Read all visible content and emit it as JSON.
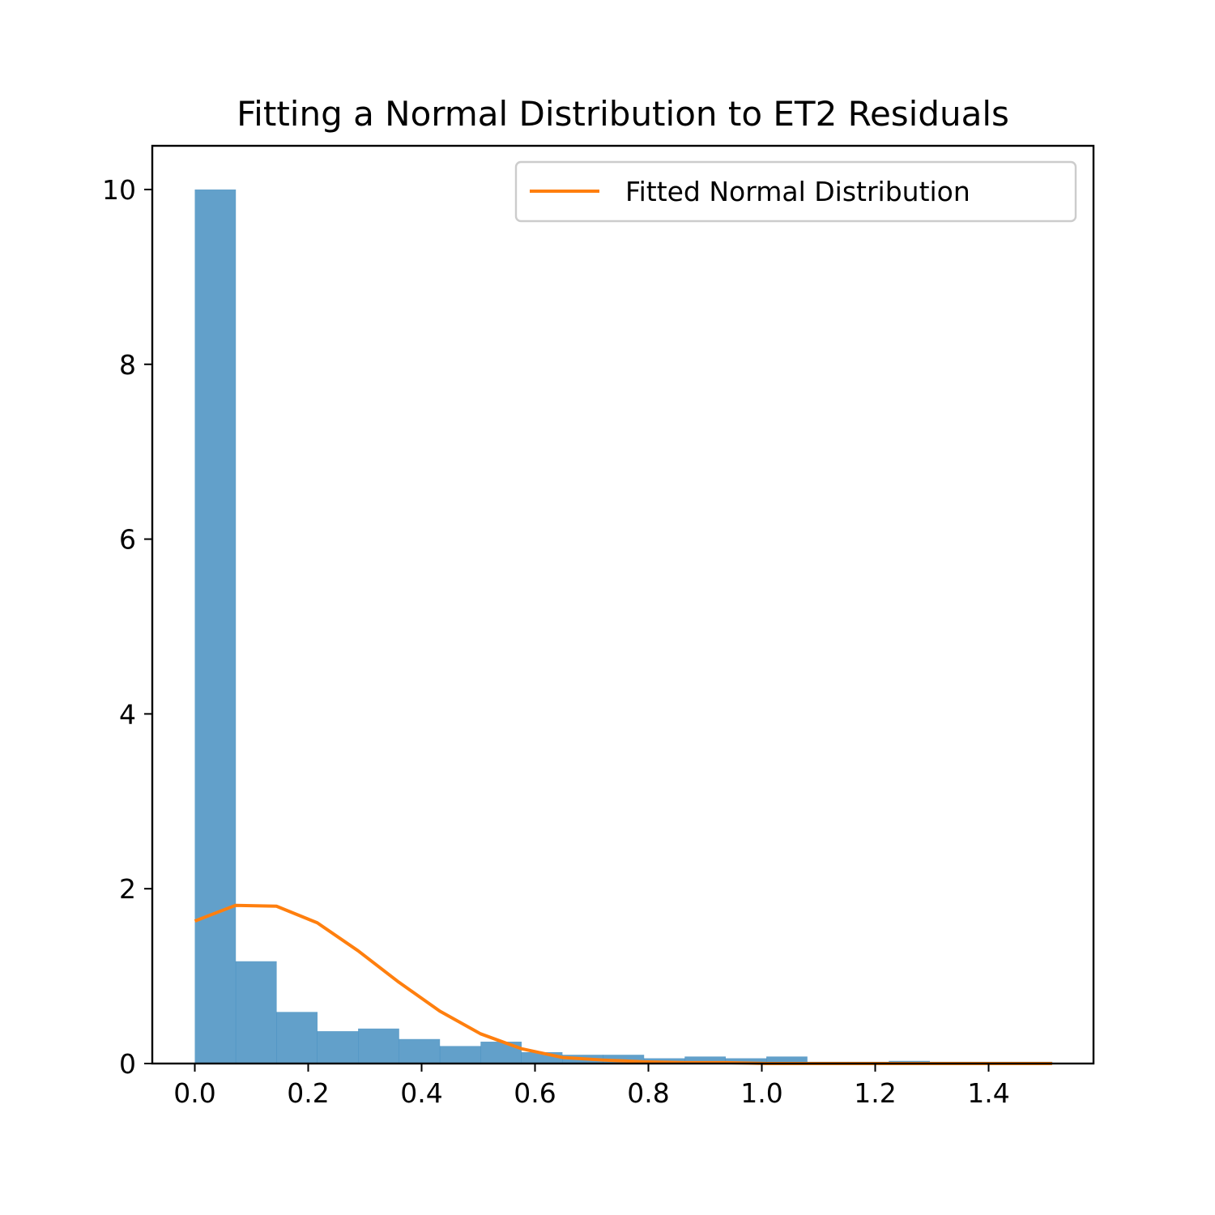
{
  "chart_data": {
    "type": "bar",
    "title": "Fitting a Normal Distribution to ET2 Residuals",
    "xlabel": "",
    "ylabel": "",
    "xlim": [
      -0.075,
      1.585
    ],
    "ylim": [
      0,
      10.5
    ],
    "x_ticks": [
      0.0,
      0.2,
      0.4,
      0.6,
      0.8,
      1.0,
      1.2,
      1.4
    ],
    "x_tick_labels": [
      "0.0",
      "0.2",
      "0.4",
      "0.6",
      "0.8",
      "1.0",
      "1.2",
      "1.4"
    ],
    "y_ticks": [
      0,
      2,
      4,
      6,
      8,
      10
    ],
    "y_tick_labels": [
      "0",
      "2",
      "4",
      "6",
      "8",
      "10"
    ],
    "grid": false,
    "legend_position": "top-right",
    "histogram": {
      "color": "#1f77b4",
      "bin_edges": [
        0.0,
        0.072,
        0.144,
        0.216,
        0.288,
        0.36,
        0.432,
        0.504,
        0.576,
        0.648,
        0.72,
        0.792,
        0.864,
        0.936,
        1.008,
        1.08,
        1.152,
        1.224,
        1.296,
        1.368,
        1.44,
        1.512
      ],
      "values": [
        10.0,
        1.17,
        0.59,
        0.37,
        0.4,
        0.28,
        0.2,
        0.25,
        0.13,
        0.1,
        0.1,
        0.06,
        0.08,
        0.06,
        0.08,
        0.02,
        0.02,
        0.03,
        0.02,
        0.02,
        0.02
      ]
    },
    "series": [
      {
        "name": "Fitted Normal Distribution",
        "type": "line",
        "color": "#ff7f0e",
        "x": [
          0.0,
          0.072,
          0.144,
          0.216,
          0.288,
          0.36,
          0.432,
          0.504,
          0.576,
          0.648,
          0.72,
          0.792,
          0.864,
          0.936,
          1.008,
          1.08,
          1.152,
          1.224,
          1.296,
          1.368,
          1.44,
          1.512
        ],
        "y": [
          1.63,
          1.81,
          1.8,
          1.61,
          1.29,
          0.93,
          0.6,
          0.34,
          0.17,
          0.07,
          0.04,
          0.02,
          0.01,
          0.01,
          0.0,
          0.0,
          0.0,
          0.0,
          0.0,
          0.0,
          0.0,
          0.0
        ]
      }
    ]
  }
}
